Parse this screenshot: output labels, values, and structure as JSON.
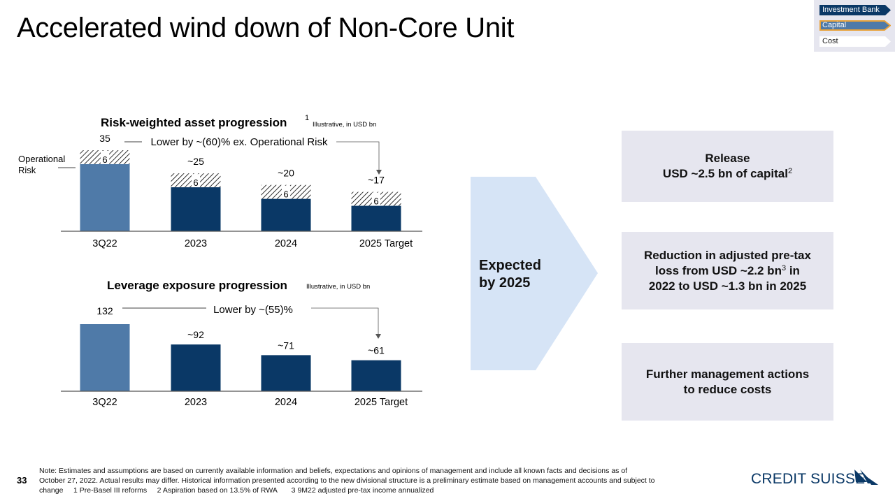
{
  "title": "Accelerated wind down of Non-Core Unit",
  "nav": {
    "items": [
      {
        "label": "Investment Bank",
        "state": "active"
      },
      {
        "label": "Capital",
        "state": "highlighted"
      },
      {
        "label": "Cost",
        "state": "inactive"
      }
    ]
  },
  "colors": {
    "light_blue": "#4f7aa8",
    "navy": "#0a3866",
    "box_grey": "#e6e6ef",
    "chevron": "#d6e4f6",
    "highlight": "#e8a23a"
  },
  "chart_data": [
    {
      "type": "bar",
      "title": "Risk-weighted asset progression",
      "title_sup": "1",
      "subtitle": "Illustrative, in USD bn",
      "categories": [
        "3Q22",
        "2023",
        "2024",
        "2025 Target"
      ],
      "series": [
        {
          "name": "",
          "values": [
            29,
            19,
            14,
            11
          ]
        },
        {
          "name": "Operational Risk",
          "values": [
            6,
            6,
            6,
            6
          ]
        }
      ],
      "total_labels": [
        "35",
        "~25",
        "~20",
        "~17"
      ],
      "segment_labels": [
        "6",
        "6",
        "6",
        "6"
      ],
      "series_label": "Operational Risk",
      "series_label_lines": [
        "Operational",
        "Risk"
      ],
      "annotation": "Lower by ~(60)% ex. Operational Risk",
      "ylim": [
        0,
        35
      ]
    },
    {
      "type": "bar",
      "title": "Leverage exposure progression",
      "subtitle": "Illustrative, in USD bn",
      "categories": [
        "3Q22",
        "2023",
        "2024",
        "2025 Target"
      ],
      "series": [
        {
          "name": "",
          "values": [
            132,
            92,
            71,
            61
          ]
        }
      ],
      "value_labels": [
        "132",
        "~92",
        "~71",
        "~61"
      ],
      "annotation": "Lower by ~(55)%",
      "ylim": [
        0,
        132
      ]
    }
  ],
  "expected": {
    "line1": "Expected",
    "line2": "by 2025"
  },
  "boxes": [
    {
      "line1": "Release",
      "line2": "USD ~2.5 bn of capital",
      "sup": "2"
    },
    {
      "line1": "Reduction in adjusted pre-tax",
      "line2a": "loss from USD ~2.2 bn",
      "sup": "3",
      "line2b": " in",
      "line3": "2022 to USD ~1.3 bn in 2025"
    },
    {
      "line1": "Further management actions",
      "line2": "to reduce costs"
    }
  ],
  "footer": {
    "page_number": "33",
    "note_lines": [
      "Note: Estimates and assumptions are based on currently available information and beliefs, expectations and opinions of management and include all known facts and decisions as of",
      "October 27, 2022. Actual results may differ. Historical information presented according to the new divisional structure is a preliminary estimate based on management accounts and subject to",
      "change     1 Pre-Basel III reforms     2 Aspiration based on 13.5% of RWA       3 9M22 adjusted pre-tax income annualized"
    ],
    "logo_text": "CREDIT SUISSE"
  }
}
